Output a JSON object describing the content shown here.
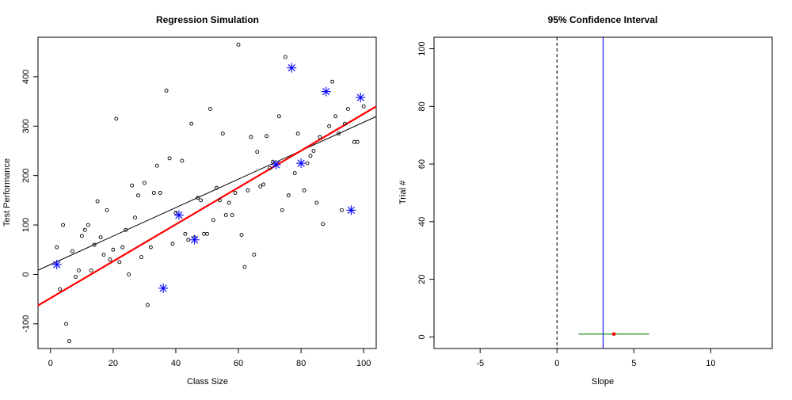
{
  "chart_data": [
    {
      "type": "scatter",
      "title": "Regression Simulation",
      "xlabel": "Class Size",
      "ylabel": "Test Performance",
      "xlim": [
        -4,
        104
      ],
      "ylim": [
        -150,
        480
      ],
      "xticks": [
        0,
        20,
        40,
        60,
        80,
        100
      ],
      "yticks": [
        -100,
        0,
        100,
        200,
        300,
        400
      ],
      "grid": false,
      "series": [
        {
          "marker": "circle",
          "color": "#000000",
          "points": [
            [
              2,
              55
            ],
            [
              4,
              100
            ],
            [
              3,
              -30
            ],
            [
              5,
              -100
            ],
            [
              6,
              -135
            ],
            [
              7,
              47
            ],
            [
              8,
              -5
            ],
            [
              9,
              8
            ],
            [
              10,
              78
            ],
            [
              11,
              90
            ],
            [
              12,
              100
            ],
            [
              13,
              8
            ],
            [
              14,
              60
            ],
            [
              15,
              148
            ],
            [
              16,
              75
            ],
            [
              17,
              40
            ],
            [
              18,
              130
            ],
            [
              19,
              30
            ],
            [
              20,
              50
            ],
            [
              21,
              315
            ],
            [
              22,
              25
            ],
            [
              23,
              55
            ],
            [
              24,
              90
            ],
            [
              25,
              0
            ],
            [
              26,
              180
            ],
            [
              27,
              115
            ],
            [
              28,
              160
            ],
            [
              29,
              35
            ],
            [
              30,
              185
            ],
            [
              31,
              -62
            ],
            [
              32,
              55
            ],
            [
              33,
              165
            ],
            [
              34,
              220
            ],
            [
              35,
              165
            ],
            [
              37,
              372
            ],
            [
              38,
              235
            ],
            [
              39,
              62
            ],
            [
              40,
              125
            ],
            [
              42,
              230
            ],
            [
              43,
              82
            ],
            [
              44,
              70
            ],
            [
              45,
              305
            ],
            [
              46,
              75
            ],
            [
              47,
              155
            ],
            [
              48,
              150
            ],
            [
              49,
              82
            ],
            [
              50,
              82
            ],
            [
              51,
              335
            ],
            [
              52,
              110
            ],
            [
              53,
              175
            ],
            [
              54,
              150
            ],
            [
              55,
              285
            ],
            [
              56,
              120
            ],
            [
              57,
              145
            ],
            [
              58,
              120
            ],
            [
              59,
              165
            ],
            [
              60,
              465
            ],
            [
              61,
              80
            ],
            [
              62,
              15
            ],
            [
              63,
              170
            ],
            [
              64,
              278
            ],
            [
              65,
              40
            ],
            [
              66,
              248
            ],
            [
              67,
              178
            ],
            [
              68,
              182
            ],
            [
              69,
              280
            ],
            [
              70,
              215
            ],
            [
              71,
              228
            ],
            [
              73,
              320
            ],
            [
              74,
              130
            ],
            [
              75,
              440
            ],
            [
              76,
              160
            ],
            [
              78,
              205
            ],
            [
              79,
              285
            ],
            [
              81,
              170
            ],
            [
              82,
              225
            ],
            [
              83,
              240
            ],
            [
              84,
              250
            ],
            [
              85,
              145
            ],
            [
              86,
              278
            ],
            [
              87,
              102
            ],
            [
              89,
              300
            ],
            [
              90,
              390
            ],
            [
              91,
              320
            ],
            [
              92,
              285
            ],
            [
              93,
              130
            ],
            [
              94,
              305
            ],
            [
              95,
              335
            ],
            [
              97,
              268
            ],
            [
              98,
              268
            ],
            [
              100,
              340
            ]
          ]
        },
        {
          "marker": "asterisk",
          "color": "#0000ff",
          "points": [
            [
              2,
              20
            ],
            [
              36,
              -28
            ],
            [
              41,
              120
            ],
            [
              46,
              70
            ],
            [
              72,
              222
            ],
            [
              77,
              418
            ],
            [
              80,
              225
            ],
            [
              88,
              370
            ],
            [
              96,
              130
            ],
            [
              99,
              358
            ]
          ]
        }
      ],
      "lines": [
        {
          "name": "",
          "color": "#000000",
          "intercept": 20,
          "slope": 2.88
        },
        {
          "name": "",
          "color": "#ff0000",
          "intercept": -48,
          "slope": 3.73
        }
      ]
    },
    {
      "type": "errorbar",
      "title": "95% Confidence Interval",
      "xlabel": "Slope",
      "ylabel": "Trial #",
      "xlim": [
        -8,
        14
      ],
      "ylim": [
        -4,
        104
      ],
      "xticks": [
        -5,
        0,
        5,
        10
      ],
      "yticks": [
        0,
        20,
        40,
        60,
        80,
        100
      ],
      "grid": false,
      "reference_lines": [
        {
          "axis": "x",
          "value": 0,
          "style": "dashed",
          "color": "#000000"
        },
        {
          "axis": "x",
          "value": 3,
          "style": "solid",
          "color": "#0000ff"
        }
      ],
      "intervals": [
        {
          "trial": 1,
          "estimate": 3.7,
          "lower": 1.4,
          "upper": 6.0,
          "color": "#008000",
          "point_color": "#ff0000"
        }
      ]
    }
  ]
}
